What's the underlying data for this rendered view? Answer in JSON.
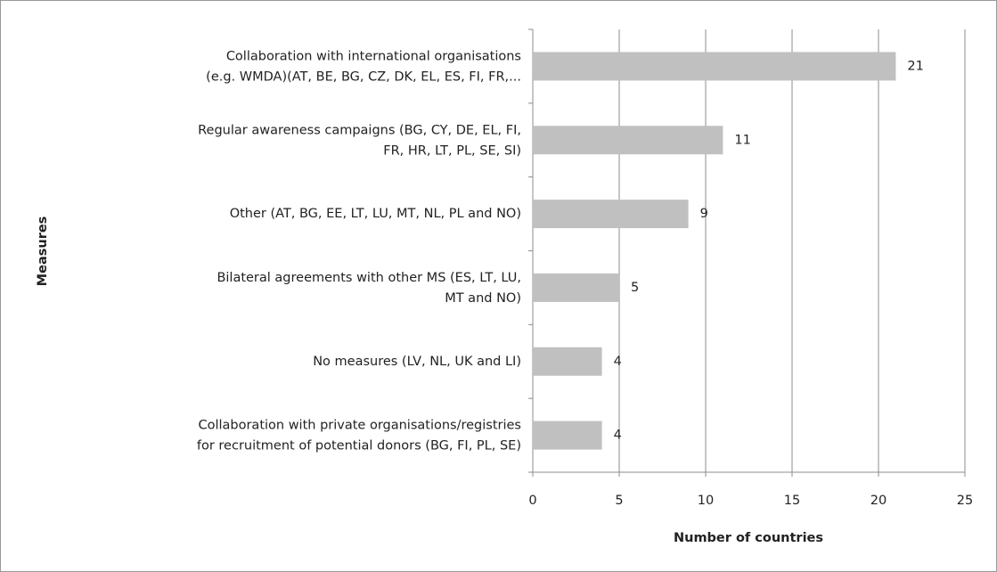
{
  "chart_data": {
    "type": "bar",
    "orientation": "horizontal",
    "categories": [
      [
        "Collaboration with international organisations",
        "(e.g. WMDA)(AT, BE, BG, CZ, DK, EL, ES, FI, FR,..."
      ],
      [
        "Regular awareness campaigns (BG, CY, DE, EL, FI,",
        "FR, HR, LT, PL, SE, SI)"
      ],
      [
        "Other (AT, BG, EE, LT, LU, MT, NL, PL and NO)"
      ],
      [
        "Bilateral agreements with other MS (ES, LT, LU,",
        "MT and NO)"
      ],
      [
        "No measures (LV, NL, UK and LI)"
      ],
      [
        "Collaboration with private organisations/registries",
        "for recruitment of potential donors (BG, FI, PL, SE)"
      ]
    ],
    "values": [
      21,
      11,
      9,
      5,
      4,
      4
    ],
    "color": "#c0c0c0",
    "xlabel": "Number of countries",
    "ylabel": "Measures",
    "xlim": [
      0,
      25
    ],
    "xticks": [
      0,
      5,
      10,
      15,
      20,
      25
    ],
    "grid": true
  }
}
